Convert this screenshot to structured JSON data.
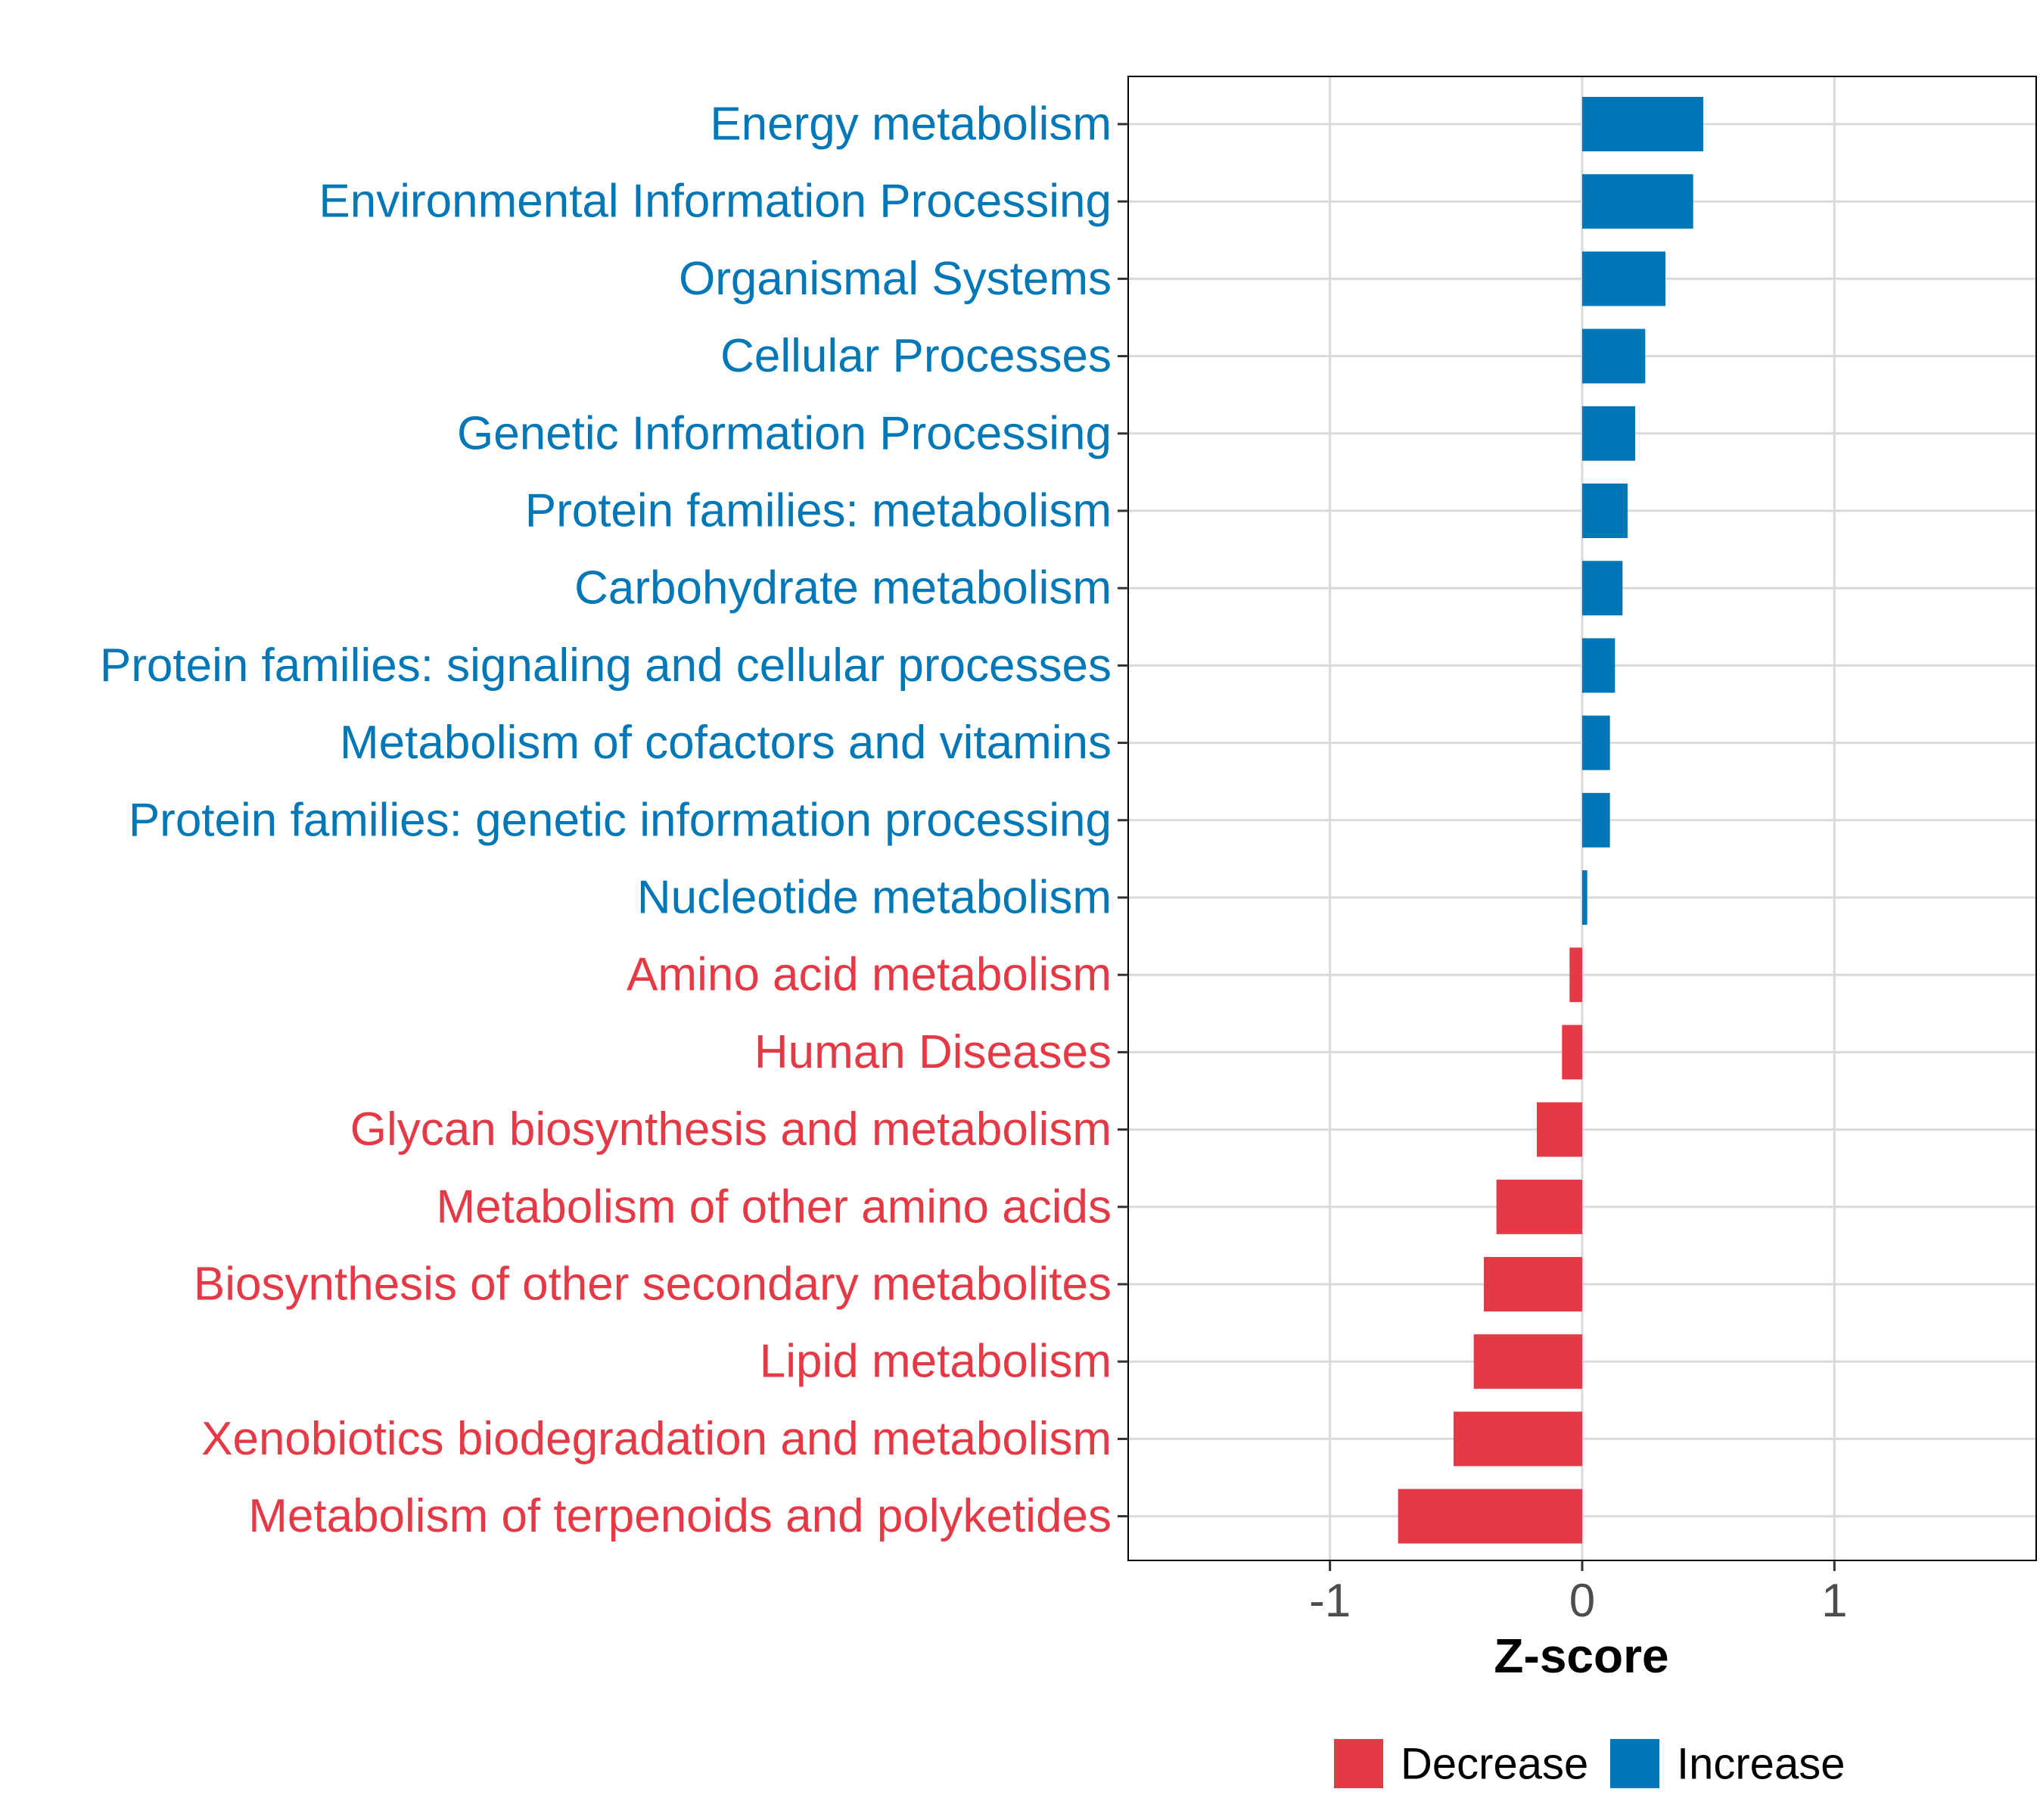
{
  "chart_data": {
    "type": "bar",
    "orientation": "horizontal",
    "title": "",
    "xlabel": "Z-score",
    "ylabel": "",
    "xlim": [
      -1.8,
      1.8
    ],
    "xticks": [
      -1,
      0,
      1
    ],
    "xtick_labels": [
      "-1",
      "0",
      "1"
    ],
    "grid": true,
    "legend_position": "bottom",
    "colors": {
      "Decrease": "#e63946",
      "Increase": "#0077b6"
    },
    "legend": [
      {
        "label": "Decrease",
        "color": "#e63946"
      },
      {
        "label": "Increase",
        "color": "#0077b6"
      }
    ],
    "categories": [
      "Energy metabolism",
      "Environmental Information Processing",
      "Organismal Systems",
      "Cellular Processes",
      "Genetic Information Processing",
      "Protein families: metabolism",
      "Carbohydrate metabolism",
      "Protein families: signaling and cellular processes",
      "Metabolism of cofactors and vitamins",
      "Protein families: genetic information processing",
      "Nucleotide metabolism",
      "Amino acid metabolism",
      "Human Diseases",
      "Glycan biosynthesis and metabolism",
      "Metabolism of other amino acids",
      "Biosynthesis of other secondary metabolites",
      "Lipid metabolism",
      "Xenobiotics biodegradation and metabolism",
      "Metabolism of terpenoids and polyketides"
    ],
    "values": [
      0.48,
      0.44,
      0.33,
      0.25,
      0.21,
      0.18,
      0.16,
      0.13,
      0.11,
      0.11,
      0.02,
      -0.05,
      -0.08,
      -0.18,
      -0.34,
      -0.39,
      -0.43,
      -0.51,
      -0.73
    ],
    "groups": [
      "Increase",
      "Increase",
      "Increase",
      "Increase",
      "Increase",
      "Increase",
      "Increase",
      "Increase",
      "Increase",
      "Increase",
      "Increase",
      "Decrease",
      "Decrease",
      "Decrease",
      "Decrease",
      "Decrease",
      "Decrease",
      "Decrease",
      "Decrease"
    ]
  }
}
